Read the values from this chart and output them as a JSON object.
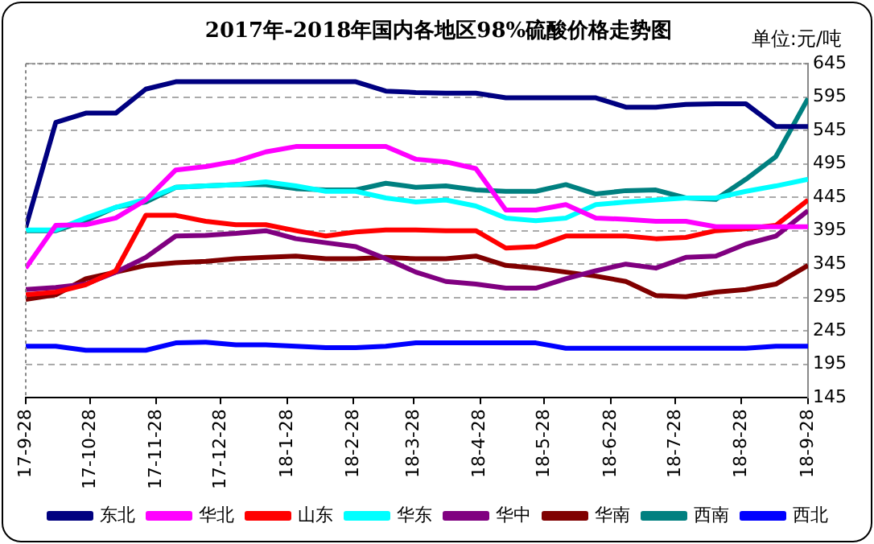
{
  "chart_data": {
    "type": "line",
    "title": "2017年-2018年国内各地区98%硫酸价格走势图",
    "ylabel": "单位:元/吨",
    "x": [
      "2017-09-28",
      "2017-10-12",
      "2017-10-26",
      "2017-11-09",
      "2017-11-23",
      "2017-12-07",
      "2017-12-21",
      "2018-01-04",
      "2018-01-18",
      "2018-02-01",
      "2018-02-15",
      "2018-03-01",
      "2018-03-15",
      "2018-03-29",
      "2018-04-12",
      "2018-04-26",
      "2018-05-10",
      "2018-05-24",
      "2018-06-07",
      "2018-06-21",
      "2018-07-05",
      "2018-07-19",
      "2018-08-02",
      "2018-08-16",
      "2018-08-30",
      "2018-09-13",
      "2018-09-28"
    ],
    "series": [
      {
        "name": "东北",
        "color": "#000080",
        "values": [
          400,
          557,
          571,
          571,
          607,
          618,
          618,
          618,
          618,
          618,
          618,
          618,
          604,
          602,
          601,
          601,
          594,
          594,
          594,
          594,
          580,
          580,
          584,
          585,
          585,
          551,
          551
        ]
      },
      {
        "name": "华北",
        "color": "#ff00ff",
        "values": [
          339,
          403,
          404,
          414,
          441,
          486,
          491,
          499,
          513,
          521,
          521,
          521,
          521,
          502,
          498,
          488,
          426,
          426,
          434,
          414,
          412,
          409,
          409,
          401,
          401,
          401,
          401
        ]
      },
      {
        "name": "山东",
        "color": "#ff0000",
        "values": [
          299,
          303,
          314,
          335,
          418,
          418,
          409,
          404,
          404,
          395,
          387,
          393,
          396,
          396,
          395,
          395,
          369,
          371,
          387,
          387,
          387,
          383,
          385,
          395,
          398,
          403,
          441
        ]
      },
      {
        "name": "华东",
        "color": "#00ffff",
        "values": [
          396,
          396,
          414,
          430,
          442,
          460,
          462,
          464,
          468,
          462,
          454,
          454,
          444,
          438,
          441,
          432,
          414,
          410,
          414,
          434,
          438,
          441,
          444,
          444,
          454,
          462,
          472
        ]
      },
      {
        "name": "华中",
        "color": "#800080",
        "values": [
          307,
          310,
          315,
          333,
          355,
          387,
          388,
          391,
          395,
          383,
          377,
          371,
          353,
          333,
          319,
          315,
          309,
          309,
          323,
          335,
          345,
          339,
          355,
          357,
          375,
          387,
          425
        ]
      },
      {
        "name": "华南",
        "color": "#800000",
        "values": [
          292,
          299,
          323,
          333,
          343,
          347,
          349,
          353,
          355,
          357,
          353,
          353,
          355,
          353,
          353,
          357,
          343,
          339,
          333,
          327,
          319,
          298,
          296,
          303,
          307,
          315,
          343
        ]
      },
      {
        "name": "西南",
        "color": "#008080",
        "values": [
          395,
          395,
          410,
          430,
          438,
          460,
          462,
          464,
          464,
          458,
          456,
          456,
          466,
          460,
          462,
          456,
          454,
          454,
          464,
          450,
          455,
          456,
          444,
          442,
          472,
          506,
          593
        ]
      },
      {
        "name": "西北",
        "color": "#0000ff",
        "values": [
          222,
          222,
          216,
          216,
          216,
          227,
          228,
          224,
          224,
          222,
          220,
          220,
          222,
          227,
          227,
          227,
          227,
          227,
          219,
          219,
          219,
          219,
          219,
          219,
          219,
          222,
          222
        ]
      }
    ],
    "ylim": [
      145,
      645
    ],
    "yticks": [
      145,
      195,
      245,
      295,
      345,
      395,
      445,
      495,
      545,
      595,
      645
    ],
    "xlim": [
      "2017-09-28",
      "2018-09-28"
    ],
    "xticks": [
      {
        "value": "2017-09-28",
        "label": "17-9-28"
      },
      {
        "value": "2017-10-28",
        "label": "17-10-28"
      },
      {
        "value": "2017-11-28",
        "label": "17-11-28"
      },
      {
        "value": "2017-12-28",
        "label": "17-12-28"
      },
      {
        "value": "2018-01-28",
        "label": "18-1-28"
      },
      {
        "value": "2018-02-28",
        "label": "18-2-28"
      },
      {
        "value": "2018-03-28",
        "label": "18-3-28"
      },
      {
        "value": "2018-04-28",
        "label": "18-4-28"
      },
      {
        "value": "2018-05-28",
        "label": "18-5-28"
      },
      {
        "value": "2018-06-28",
        "label": "18-6-28"
      },
      {
        "value": "2018-07-28",
        "label": "18-7-28"
      },
      {
        "value": "2018-08-28",
        "label": "18-8-28"
      },
      {
        "value": "2018-09-28",
        "label": "18-9-28"
      }
    ],
    "grid": "y",
    "legend": "bottom",
    "marker": "none",
    "line_style": "solid"
  }
}
